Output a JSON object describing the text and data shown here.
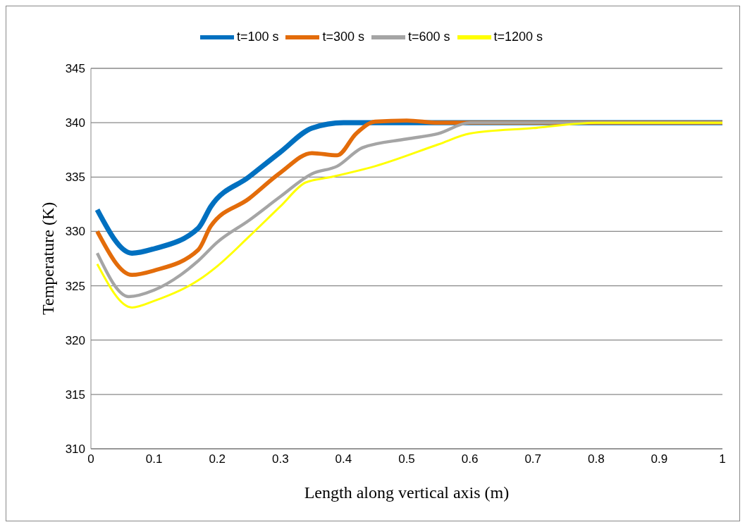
{
  "chart_data": {
    "type": "line",
    "xlabel": "Length along vertical axis (m)",
    "ylabel": "Temperature (K)",
    "xlim": [
      0,
      1
    ],
    "xticks": [
      0,
      0.1,
      0.2,
      0.3,
      0.4,
      0.5,
      0.6,
      0.7,
      0.8,
      0.9,
      1
    ],
    "ylim": [
      310,
      345
    ],
    "yticks": [
      310,
      315,
      320,
      325,
      330,
      335,
      340,
      345
    ],
    "grid": "y",
    "legend": "top",
    "marker": "none",
    "line_style": "solid",
    "series": [
      {
        "name": "t=100 s",
        "color": "#0070c0",
        "x": [
          0.01,
          0.065,
          0.1,
          0.17,
          0.19,
          0.25,
          0.3,
          0.35,
          0.4,
          0.45,
          0.6,
          1
        ],
        "values": [
          332,
          328,
          328.4,
          330.3,
          332.3,
          335,
          337.3,
          339.5,
          340,
          340,
          340,
          340
        ]
      },
      {
        "name": "t=300 s",
        "color": "#e36c0a",
        "x": [
          0.01,
          0.065,
          0.1,
          0.17,
          0.19,
          0.25,
          0.3,
          0.35,
          0.39,
          0.42,
          0.45,
          0.5,
          0.55,
          1
        ],
        "values": [
          330,
          326,
          326.4,
          328.3,
          330.5,
          333,
          335.4,
          337.2,
          337,
          339,
          340.1,
          340.2,
          340,
          340
        ]
      },
      {
        "name": "t=600 s",
        "color": "#a5a5a5",
        "x": [
          0.01,
          0.06,
          0.1,
          0.17,
          0.2,
          0.25,
          0.3,
          0.35,
          0.39,
          0.43,
          0.5,
          0.55,
          0.6,
          0.7,
          1
        ],
        "values": [
          328,
          324,
          324.6,
          327.3,
          329,
          331,
          333.2,
          335.3,
          336,
          337.7,
          338.5,
          339,
          340,
          340,
          340
        ]
      },
      {
        "name": "t=1200 s",
        "color": "#ffff00",
        "x": [
          0.01,
          0.065,
          0.1,
          0.17,
          0.2,
          0.25,
          0.3,
          0.34,
          0.38,
          0.45,
          0.55,
          0.6,
          0.7,
          0.8,
          1
        ],
        "values": [
          327,
          323,
          323.6,
          325.5,
          326.8,
          329.5,
          332.3,
          334.5,
          335,
          336,
          338,
          339,
          339.5,
          340,
          340
        ]
      }
    ]
  }
}
